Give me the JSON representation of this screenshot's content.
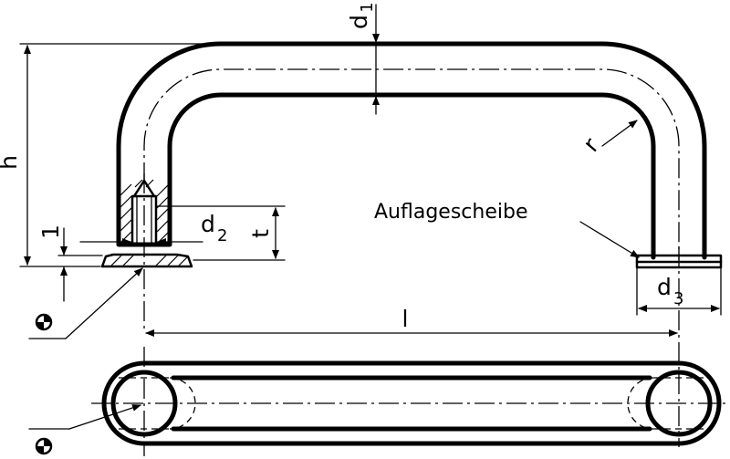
{
  "labels": {
    "d1": "d",
    "d1_sub": "1",
    "d2": "d",
    "d2_sub": "2",
    "d3": "d",
    "d3_sub": "3",
    "h": "h",
    "t": "t",
    "r": "r",
    "l": "l",
    "one": "1",
    "washer": "Auflagescheibe"
  },
  "icons": {
    "top": "earth-ground-symbol",
    "bottom": "earth-ground-symbol"
  }
}
